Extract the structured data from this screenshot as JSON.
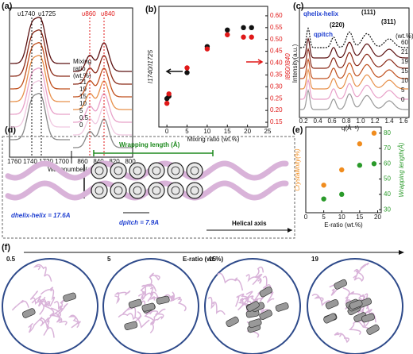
{
  "figure": {
    "a": {
      "label": "(a)",
      "peaks": [
        "υ1740",
        "υ1725",
        "υ860",
        "υ840"
      ],
      "legend_title": [
        "Mixing",
        "ratio",
        "(wt.%)"
      ],
      "curve_labels": [
        "21",
        "19",
        "15",
        "10",
        "5",
        "0.5",
        "0"
      ],
      "xticks": [
        "1760",
        "1740",
        "1720",
        "1700",
        "860",
        "840",
        "820",
        "800"
      ],
      "xlabel": "Wavenumber(cm⁻¹)"
    },
    "c": {
      "label": "(c)",
      "annotations": [
        "qhelix-helix",
        "(220)",
        "qpitch",
        "(111)",
        "(311)"
      ],
      "curve_labels": [
        "60",
        "21",
        "19",
        "15",
        "10",
        "5",
        "0"
      ],
      "legend_title": "(wt.%)",
      "xticks": [
        "0.2",
        "0.4",
        "0.6",
        "0.8",
        "1.0",
        "1.2",
        "1.4",
        "1.6"
      ],
      "xlabel": "q(Å⁻¹)",
      "ylabel": "Intensity(a.u.)"
    },
    "d": {
      "label": "(d)",
      "wrapping": "Wrapping length (Å)",
      "helix": "dhelix-helix = 17.6A",
      "pitch": "dpitch = 7.9A",
      "axis": "Helical axis"
    },
    "f": {
      "label": "(f)",
      "title": "E-ratio (wt.%)",
      "panels": [
        "0.5",
        "5",
        "15",
        "19"
      ]
    }
  },
  "chart_data": [
    {
      "type": "scatter",
      "label": "(b)",
      "xlabel": "Mixing ratio (wt.%)",
      "ylabel": "I1740/I1725",
      "y2label": "I860/I840",
      "x": [
        0,
        0.5,
        5,
        10,
        15,
        19,
        21
      ],
      "series": [
        {
          "color": "#111111",
          "axis": "y",
          "values": [
            0.25,
            0.26,
            0.36,
            0.47,
            0.54,
            0.55,
            0.55
          ]
        },
        {
          "color": "#e01818",
          "axis": "y2",
          "values": [
            0.23,
            0.27,
            0.38,
            0.46,
            0.52,
            0.51,
            0.51
          ]
        }
      ],
      "xlim": [
        -2,
        25
      ],
      "xticks": [
        0,
        5,
        10,
        15,
        20,
        25
      ],
      "ylim": [
        0.13,
        0.64
      ],
      "y2lim": [
        0.13,
        0.64
      ],
      "y2ticks": [
        0.15,
        {
          "value": 0.2,
          "label": "0.20"
        },
        0.25,
        {
          "value": 0.3,
          "label": "0.30"
        },
        0.35,
        {
          "value": 0.4,
          "label": "0.40"
        },
        0.45,
        {
          "value": 0.5,
          "label": "0.50"
        },
        0.55,
        {
          "value": 0.6,
          "label": "0.60"
        }
      ]
    },
    {
      "type": "scatter",
      "label": "(e)",
      "xlabel": "E-ratio (wt.%)",
      "ylabel": "Crystallinity(%)",
      "y2label": "Wrapping length(Å)",
      "x": [
        5,
        10,
        15,
        19
      ],
      "series": [
        {
          "color": "#f08c1e",
          "axis": "y",
          "values": [
            46,
            56,
            73,
            80
          ]
        },
        {
          "color": "#2a9a2a",
          "axis": "y2",
          "values": [
            37,
            40,
            59,
            60
          ]
        }
      ],
      "xlim": [
        0,
        21
      ],
      "xticks": [
        0,
        5,
        10,
        15,
        20
      ],
      "ylim": [
        28,
        84
      ],
      "y2lim": [
        28,
        84
      ],
      "y2ticks": [
        30,
        40,
        50,
        60,
        70,
        80
      ]
    }
  ]
}
